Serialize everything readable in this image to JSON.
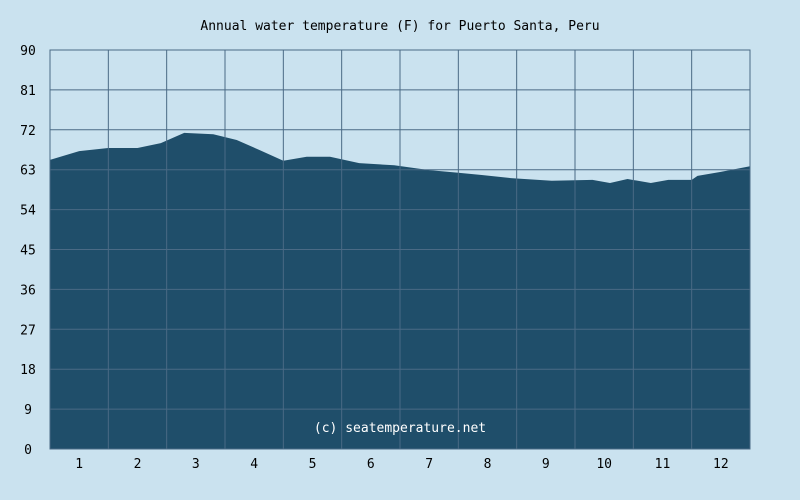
{
  "chart_data": {
    "type": "area",
    "title": "Annual water temperature (F) for Puerto Santa, Peru",
    "xlabel": "",
    "ylabel": "",
    "xlim": [
      0.5,
      12.5
    ],
    "ylim": [
      0,
      90
    ],
    "xticks": [
      "1",
      "2",
      "3",
      "4",
      "5",
      "6",
      "7",
      "8",
      "9",
      "10",
      "11",
      "12"
    ],
    "yticks": [
      "0",
      "9",
      "18",
      "27",
      "36",
      "45",
      "54",
      "63",
      "72",
      "81",
      "90"
    ],
    "grid": true,
    "watermark": "(c) seatemperature.net",
    "x": [
      0.5,
      1.0,
      1.5,
      2.0,
      2.4,
      2.8,
      3.3,
      3.7,
      4.1,
      4.5,
      4.9,
      5.3,
      5.8,
      6.4,
      7.0,
      7.5,
      7.9,
      8.4,
      9.1,
      9.8,
      10.1,
      10.4,
      10.8,
      11.1,
      11.5,
      11.6,
      12.0,
      12.5
    ],
    "values": [
      65.2,
      67.2,
      67.9,
      67.9,
      69.0,
      71.3,
      71.0,
      69.7,
      67.4,
      65.0,
      65.9,
      65.9,
      64.5,
      64.0,
      62.9,
      62.3,
      61.8,
      61.1,
      60.5,
      60.7,
      60.0,
      60.9,
      60.0,
      60.7,
      60.7,
      61.6,
      62.5,
      63.8
    ],
    "colors": {
      "background": "#cae2ef",
      "fill": "#1f4e6a",
      "grid": "#4a6a85"
    }
  }
}
